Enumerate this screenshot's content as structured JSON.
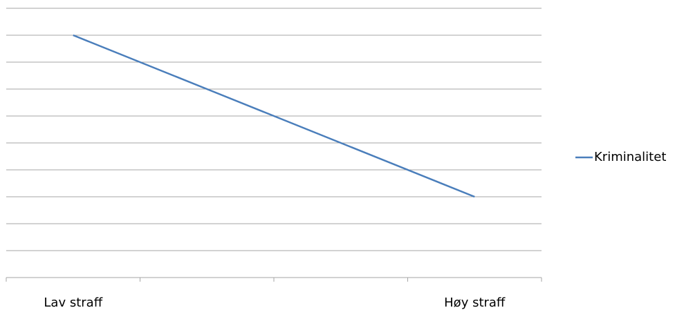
{
  "chart_data": {
    "type": "line",
    "categories": [
      "Lav straff",
      null,
      null,
      "Høy straff"
    ],
    "series": [
      {
        "name": "Kriminalitet",
        "color": "#4a7ebb",
        "values": [
          9,
          7,
          5,
          3
        ]
      }
    ],
    "ylim": [
      0,
      10
    ],
    "yticks": [
      0,
      1,
      2,
      3,
      4,
      5,
      6,
      7,
      8,
      9,
      10
    ],
    "grid": true,
    "legend": "right"
  }
}
